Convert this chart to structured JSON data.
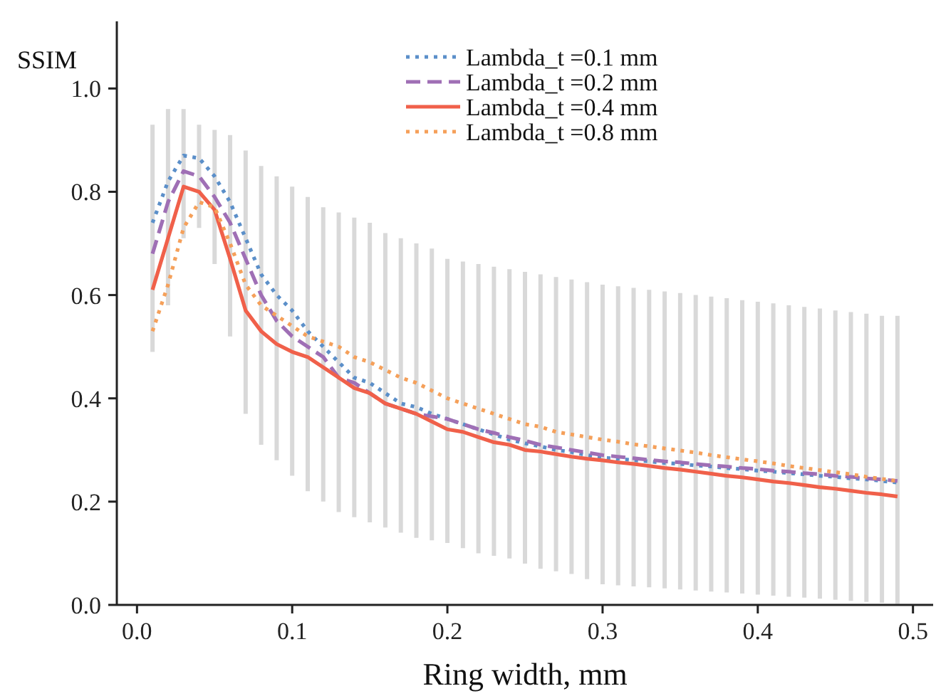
{
  "chart_data": {
    "type": "line",
    "xlabel": "Ring width, mm",
    "ylabel": "SSIM",
    "x": [
      0.01,
      0.02,
      0.03,
      0.04,
      0.05,
      0.06,
      0.07,
      0.08,
      0.09,
      0.1,
      0.11,
      0.12,
      0.13,
      0.14,
      0.15,
      0.16,
      0.17,
      0.18,
      0.19,
      0.2,
      0.21,
      0.22,
      0.23,
      0.24,
      0.25,
      0.26,
      0.27,
      0.28,
      0.29,
      0.3,
      0.31,
      0.32,
      0.33,
      0.34,
      0.35,
      0.36,
      0.37,
      0.38,
      0.39,
      0.4,
      0.41,
      0.42,
      0.43,
      0.44,
      0.45,
      0.46,
      0.47,
      0.48,
      0.49
    ],
    "xlim": [
      -0.013,
      0.513
    ],
    "xticks": [
      {
        "value": 0,
        "label": "0.0"
      },
      0.1,
      0.2,
      0.3,
      0.4,
      0.5
    ],
    "ylim": [
      0,
      1.13
    ],
    "yticks": [
      {
        "value": 0,
        "label": "0.0"
      },
      0.2,
      0.4,
      0.6,
      0.8,
      {
        "value": 1,
        "label": "1.0"
      }
    ],
    "grid": false,
    "legend": "top right",
    "series": [
      {
        "name": "Lambda_t =0.1 mm",
        "color": "#5b8fc9",
        "line_style": "dotted",
        "values": [
          0.74,
          0.82,
          0.87,
          0.865,
          0.83,
          0.78,
          0.71,
          0.64,
          0.6,
          0.57,
          0.53,
          0.5,
          0.47,
          0.44,
          0.43,
          0.41,
          0.39,
          0.383,
          0.37,
          0.36,
          0.35,
          0.34,
          0.33,
          0.32,
          0.313,
          0.307,
          0.3,
          0.296,
          0.29,
          0.285,
          0.283,
          0.28,
          0.278,
          0.275,
          0.273,
          0.27,
          0.268,
          0.265,
          0.263,
          0.26,
          0.258,
          0.255,
          0.253,
          0.25,
          0.248,
          0.245,
          0.243,
          0.24,
          0.237
        ],
        "errors": [
          [
            0.49,
            0.93
          ],
          [
            0.58,
            0.96
          ],
          [
            0.71,
            0.96
          ],
          [
            0.73,
            0.93
          ],
          [
            0.66,
            0.92
          ],
          [
            0.52,
            0.91
          ],
          [
            0.37,
            0.88
          ],
          [
            0.31,
            0.85
          ],
          [
            0.28,
            0.83
          ],
          [
            0.25,
            0.81
          ],
          [
            0.22,
            0.79
          ],
          [
            0.2,
            0.77
          ],
          [
            0.18,
            0.76
          ],
          [
            0.17,
            0.75
          ],
          [
            0.16,
            0.74
          ],
          [
            0.15,
            0.72
          ],
          [
            0.14,
            0.71
          ],
          [
            0.13,
            0.7
          ],
          [
            0.125,
            0.69
          ],
          [
            0.12,
            0.67
          ],
          [
            0.11,
            0.665
          ],
          [
            0.1,
            0.66
          ],
          [
            0.095,
            0.655
          ],
          [
            0.09,
            0.65
          ],
          [
            0.08,
            0.645
          ],
          [
            0.07,
            0.64
          ],
          [
            0.065,
            0.635
          ],
          [
            0.06,
            0.63
          ],
          [
            0.05,
            0.625
          ],
          [
            0.04,
            0.62
          ],
          [
            0.038,
            0.617
          ],
          [
            0.036,
            0.614
          ],
          [
            0.034,
            0.61
          ],
          [
            0.032,
            0.607
          ],
          [
            0.03,
            0.604
          ],
          [
            0.028,
            0.6
          ],
          [
            0.026,
            0.597
          ],
          [
            0.024,
            0.594
          ],
          [
            0.022,
            0.59
          ],
          [
            0.02,
            0.587
          ],
          [
            0.018,
            0.584
          ],
          [
            0.016,
            0.58
          ],
          [
            0.014,
            0.577
          ],
          [
            0.012,
            0.574
          ],
          [
            0.01,
            0.57
          ],
          [
            0.008,
            0.567
          ],
          [
            0.006,
            0.564
          ],
          [
            0.004,
            0.56
          ],
          [
            0.002,
            0.56
          ]
        ]
      },
      {
        "name": "Lambda_t =0.2 mm",
        "color": "#9f6fb5",
        "line_style": "dashed",
        "values": [
          0.68,
          0.78,
          0.84,
          0.83,
          0.79,
          0.74,
          0.67,
          0.6,
          0.55,
          0.52,
          0.5,
          0.48,
          0.44,
          0.43,
          0.41,
          0.39,
          0.38,
          0.37,
          0.365,
          0.36,
          0.35,
          0.34,
          0.333,
          0.325,
          0.318,
          0.31,
          0.305,
          0.3,
          0.295,
          0.29,
          0.287,
          0.284,
          0.281,
          0.278,
          0.276,
          0.273,
          0.27,
          0.268,
          0.265,
          0.263,
          0.26,
          0.258,
          0.255,
          0.253,
          0.25,
          0.248,
          0.245,
          0.243,
          0.24
        ]
      },
      {
        "name": "Lambda_t =0.4 mm",
        "color": "#f0604a",
        "line_style": "solid",
        "values": [
          0.61,
          0.71,
          0.81,
          0.8,
          0.765,
          0.67,
          0.57,
          0.53,
          0.505,
          0.49,
          0.48,
          0.46,
          0.44,
          0.42,
          0.41,
          0.39,
          0.38,
          0.37,
          0.355,
          0.34,
          0.335,
          0.325,
          0.315,
          0.31,
          0.3,
          0.297,
          0.292,
          0.287,
          0.283,
          0.28,
          0.276,
          0.273,
          0.269,
          0.265,
          0.262,
          0.258,
          0.254,
          0.25,
          0.247,
          0.243,
          0.239,
          0.236,
          0.232,
          0.228,
          0.225,
          0.221,
          0.217,
          0.214,
          0.21
        ]
      },
      {
        "name": "Lambda_t =0.8 mm",
        "color": "#f5a05a",
        "line_style": "dotted",
        "values": [
          0.53,
          0.62,
          0.73,
          0.78,
          0.77,
          0.7,
          0.62,
          0.58,
          0.56,
          0.54,
          0.52,
          0.51,
          0.5,
          0.48,
          0.47,
          0.455,
          0.44,
          0.43,
          0.415,
          0.4,
          0.39,
          0.38,
          0.37,
          0.36,
          0.35,
          0.345,
          0.335,
          0.33,
          0.325,
          0.32,
          0.316,
          0.311,
          0.307,
          0.303,
          0.299,
          0.295,
          0.29,
          0.286,
          0.282,
          0.278,
          0.274,
          0.269,
          0.265,
          0.261,
          0.257,
          0.253,
          0.248,
          0.244,
          0.24
        ]
      }
    ]
  }
}
